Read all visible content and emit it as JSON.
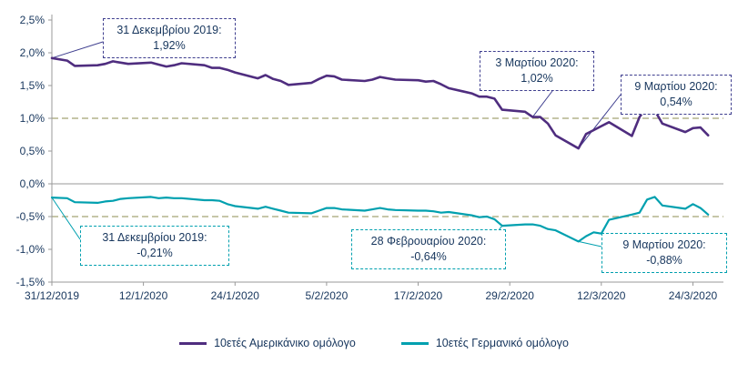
{
  "chart_data": {
    "type": "line",
    "title": "",
    "xlabel": "",
    "ylabel": "",
    "ylim": [
      -1.5,
      2.5
    ],
    "y_tick_step": 0.5,
    "y_tick_labels": [
      "2,5%",
      "2,0%",
      "1,5%",
      "1,0%",
      "0,5%",
      "0,0%",
      "-0,5%",
      "-1,0%",
      "-1,5%"
    ],
    "x_tick_labels": [
      "31/12/2019",
      "12/1/2020",
      "24/1/2020",
      "5/2/2020",
      "17/2/2020",
      "29/2/2020",
      "12/3/2020",
      "24/3/2020"
    ],
    "grid": "horizontal dashed reference lines only",
    "legend_position": "bottom",
    "reference_lines": [
      1.0,
      -0.5
    ],
    "x": [
      "2019-12-31",
      "2020-01-02",
      "2020-01-03",
      "2020-01-06",
      "2020-01-07",
      "2020-01-08",
      "2020-01-09",
      "2020-01-10",
      "2020-01-13",
      "2020-01-14",
      "2020-01-15",
      "2020-01-16",
      "2020-01-17",
      "2020-01-20",
      "2020-01-21",
      "2020-01-22",
      "2020-01-23",
      "2020-01-24",
      "2020-01-27",
      "2020-01-28",
      "2020-01-29",
      "2020-01-30",
      "2020-01-31",
      "2020-02-03",
      "2020-02-04",
      "2020-02-05",
      "2020-02-06",
      "2020-02-07",
      "2020-02-10",
      "2020-02-11",
      "2020-02-12",
      "2020-02-13",
      "2020-02-14",
      "2020-02-17",
      "2020-02-18",
      "2020-02-19",
      "2020-02-20",
      "2020-02-21",
      "2020-02-24",
      "2020-02-25",
      "2020-02-26",
      "2020-02-27",
      "2020-02-28",
      "2020-03-02",
      "2020-03-03",
      "2020-03-04",
      "2020-03-05",
      "2020-03-06",
      "2020-03-09",
      "2020-03-10",
      "2020-03-11",
      "2020-03-12",
      "2020-03-13",
      "2020-03-16",
      "2020-03-17",
      "2020-03-18",
      "2020-03-19",
      "2020-03-20",
      "2020-03-23",
      "2020-03-24",
      "2020-03-25",
      "2020-03-26"
    ],
    "series": [
      {
        "name": "10ετές Αμερικάνικο ομόλογο",
        "color": "#4f2d7f",
        "values": [
          1.92,
          1.88,
          1.8,
          1.81,
          1.83,
          1.87,
          1.85,
          1.83,
          1.85,
          1.82,
          1.79,
          1.81,
          1.84,
          1.81,
          1.77,
          1.77,
          1.74,
          1.7,
          1.61,
          1.66,
          1.6,
          1.57,
          1.51,
          1.54,
          1.6,
          1.65,
          1.64,
          1.59,
          1.57,
          1.59,
          1.63,
          1.61,
          1.59,
          1.58,
          1.56,
          1.57,
          1.52,
          1.46,
          1.38,
          1.33,
          1.33,
          1.3,
          1.13,
          1.1,
          1.02,
          1.02,
          0.92,
          0.74,
          0.54,
          0.76,
          0.82,
          0.88,
          0.94,
          0.73,
          1.02,
          1.18,
          1.12,
          0.92,
          0.79,
          0.85,
          0.86,
          0.74
        ]
      },
      {
        "name": "10ετές Γερμανικό ομόλογο",
        "color": "#00a0af",
        "values": [
          -0.21,
          -0.22,
          -0.28,
          -0.29,
          -0.27,
          -0.26,
          -0.23,
          -0.22,
          -0.2,
          -0.22,
          -0.21,
          -0.22,
          -0.22,
          -0.25,
          -0.25,
          -0.26,
          -0.31,
          -0.34,
          -0.38,
          -0.35,
          -0.38,
          -0.41,
          -0.44,
          -0.45,
          -0.41,
          -0.37,
          -0.37,
          -0.39,
          -0.41,
          -0.39,
          -0.37,
          -0.39,
          -0.4,
          -0.41,
          -0.41,
          -0.42,
          -0.44,
          -0.43,
          -0.48,
          -0.51,
          -0.5,
          -0.54,
          -0.64,
          -0.62,
          -0.62,
          -0.64,
          -0.69,
          -0.71,
          -0.88,
          -0.8,
          -0.74,
          -0.76,
          -0.55,
          -0.47,
          -0.44,
          -0.24,
          -0.2,
          -0.33,
          -0.38,
          -0.31,
          -0.37,
          -0.47
        ]
      }
    ]
  },
  "annotations": [
    {
      "id": "us_start",
      "series": "us",
      "date_label": "31 Δεκεμβρίου 2019:",
      "value_label": "1,92%",
      "target_date": "2019-12-31",
      "target_value": 1.92
    },
    {
      "id": "us_mar3",
      "series": "us",
      "date_label": "3 Μαρτίου 2020:",
      "value_label": "1,02%",
      "target_date": "2020-03-03",
      "target_value": 1.02
    },
    {
      "id": "us_mar9",
      "series": "us",
      "date_label": "9 Μαρτίου 2020:",
      "value_label": "0,54%",
      "target_date": "2020-03-09",
      "target_value": 0.54
    },
    {
      "id": "de_start",
      "series": "de",
      "date_label": "31 Δεκεμβρίου 2019:",
      "value_label": "-0,21%",
      "target_date": "2019-12-31",
      "target_value": -0.21
    },
    {
      "id": "de_feb28",
      "series": "de",
      "date_label": "28 Φεβρουαρίου 2020:",
      "value_label": "-0,64%",
      "target_date": "2020-02-28",
      "target_value": -0.64
    },
    {
      "id": "de_mar9",
      "series": "de",
      "date_label": "9 Μαρτίου 2020:",
      "value_label": "-0,88%",
      "target_date": "2020-03-09",
      "target_value": -0.88
    }
  ],
  "colors": {
    "us_line": "#4f2d7f",
    "de_line": "#00a0af",
    "annotation_us_border": "#3f3f8f",
    "annotation_de_border": "#00a0af",
    "reference_line": "#b3b38c",
    "axis_line": "#9a9a9a",
    "axis_text": "#17365d"
  }
}
